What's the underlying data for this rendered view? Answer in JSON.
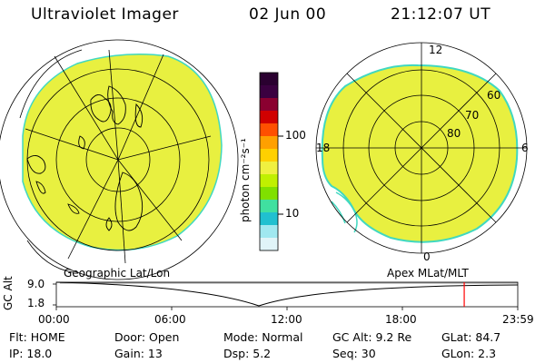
{
  "header": {
    "title": "Ultraviolet Imager",
    "date": "02 Jun 00",
    "time": "21:12:07 UT"
  },
  "left_panel": {
    "caption": "Geographic Lat/Lon"
  },
  "right_panel": {
    "caption": "Apex MLat/MLT",
    "mlt_labels": {
      "top": "12",
      "left": "18",
      "right": "6",
      "bottom": "0"
    },
    "lat_labels": [
      "60",
      "70",
      "80"
    ]
  },
  "colorbar": {
    "unit_label": "photon cm⁻²s⁻¹",
    "tick_labels": [
      "100",
      "10"
    ],
    "colors": [
      "#2a0030",
      "#3a0040",
      "#8a0030",
      "#d00000",
      "#ff5000",
      "#ffa000",
      "#ffd000",
      "#f0f040",
      "#c0f000",
      "#80e000",
      "#40e0a0",
      "#20c0d0",
      "#a0e8f0",
      "#e0f4f8"
    ]
  },
  "timeline": {
    "ylabel": "GC Alt",
    "ymax_label": "9.0",
    "ymin_label": "1.8",
    "time_ticks": [
      "00:00",
      "06:00",
      "12:00",
      "18:00",
      "23:59"
    ],
    "current_time_fraction": 0.884
  },
  "info": {
    "flt": "Flt: HOME",
    "ip": "IP: 18.0",
    "door": "Door: Open",
    "gain": "Gain: 13",
    "mode": "Mode: Normal",
    "dsp": "Dsp:    5.2",
    "gc_alt": "GC Alt: 9.2 Re",
    "seq": "Seq: 30",
    "glat": "GLat:  84.7",
    "glon": "GLon:   2.3"
  },
  "colors": {
    "image_fill": "#e8f040",
    "image_edge": "#40d8c0",
    "marker": "#ff0000"
  }
}
